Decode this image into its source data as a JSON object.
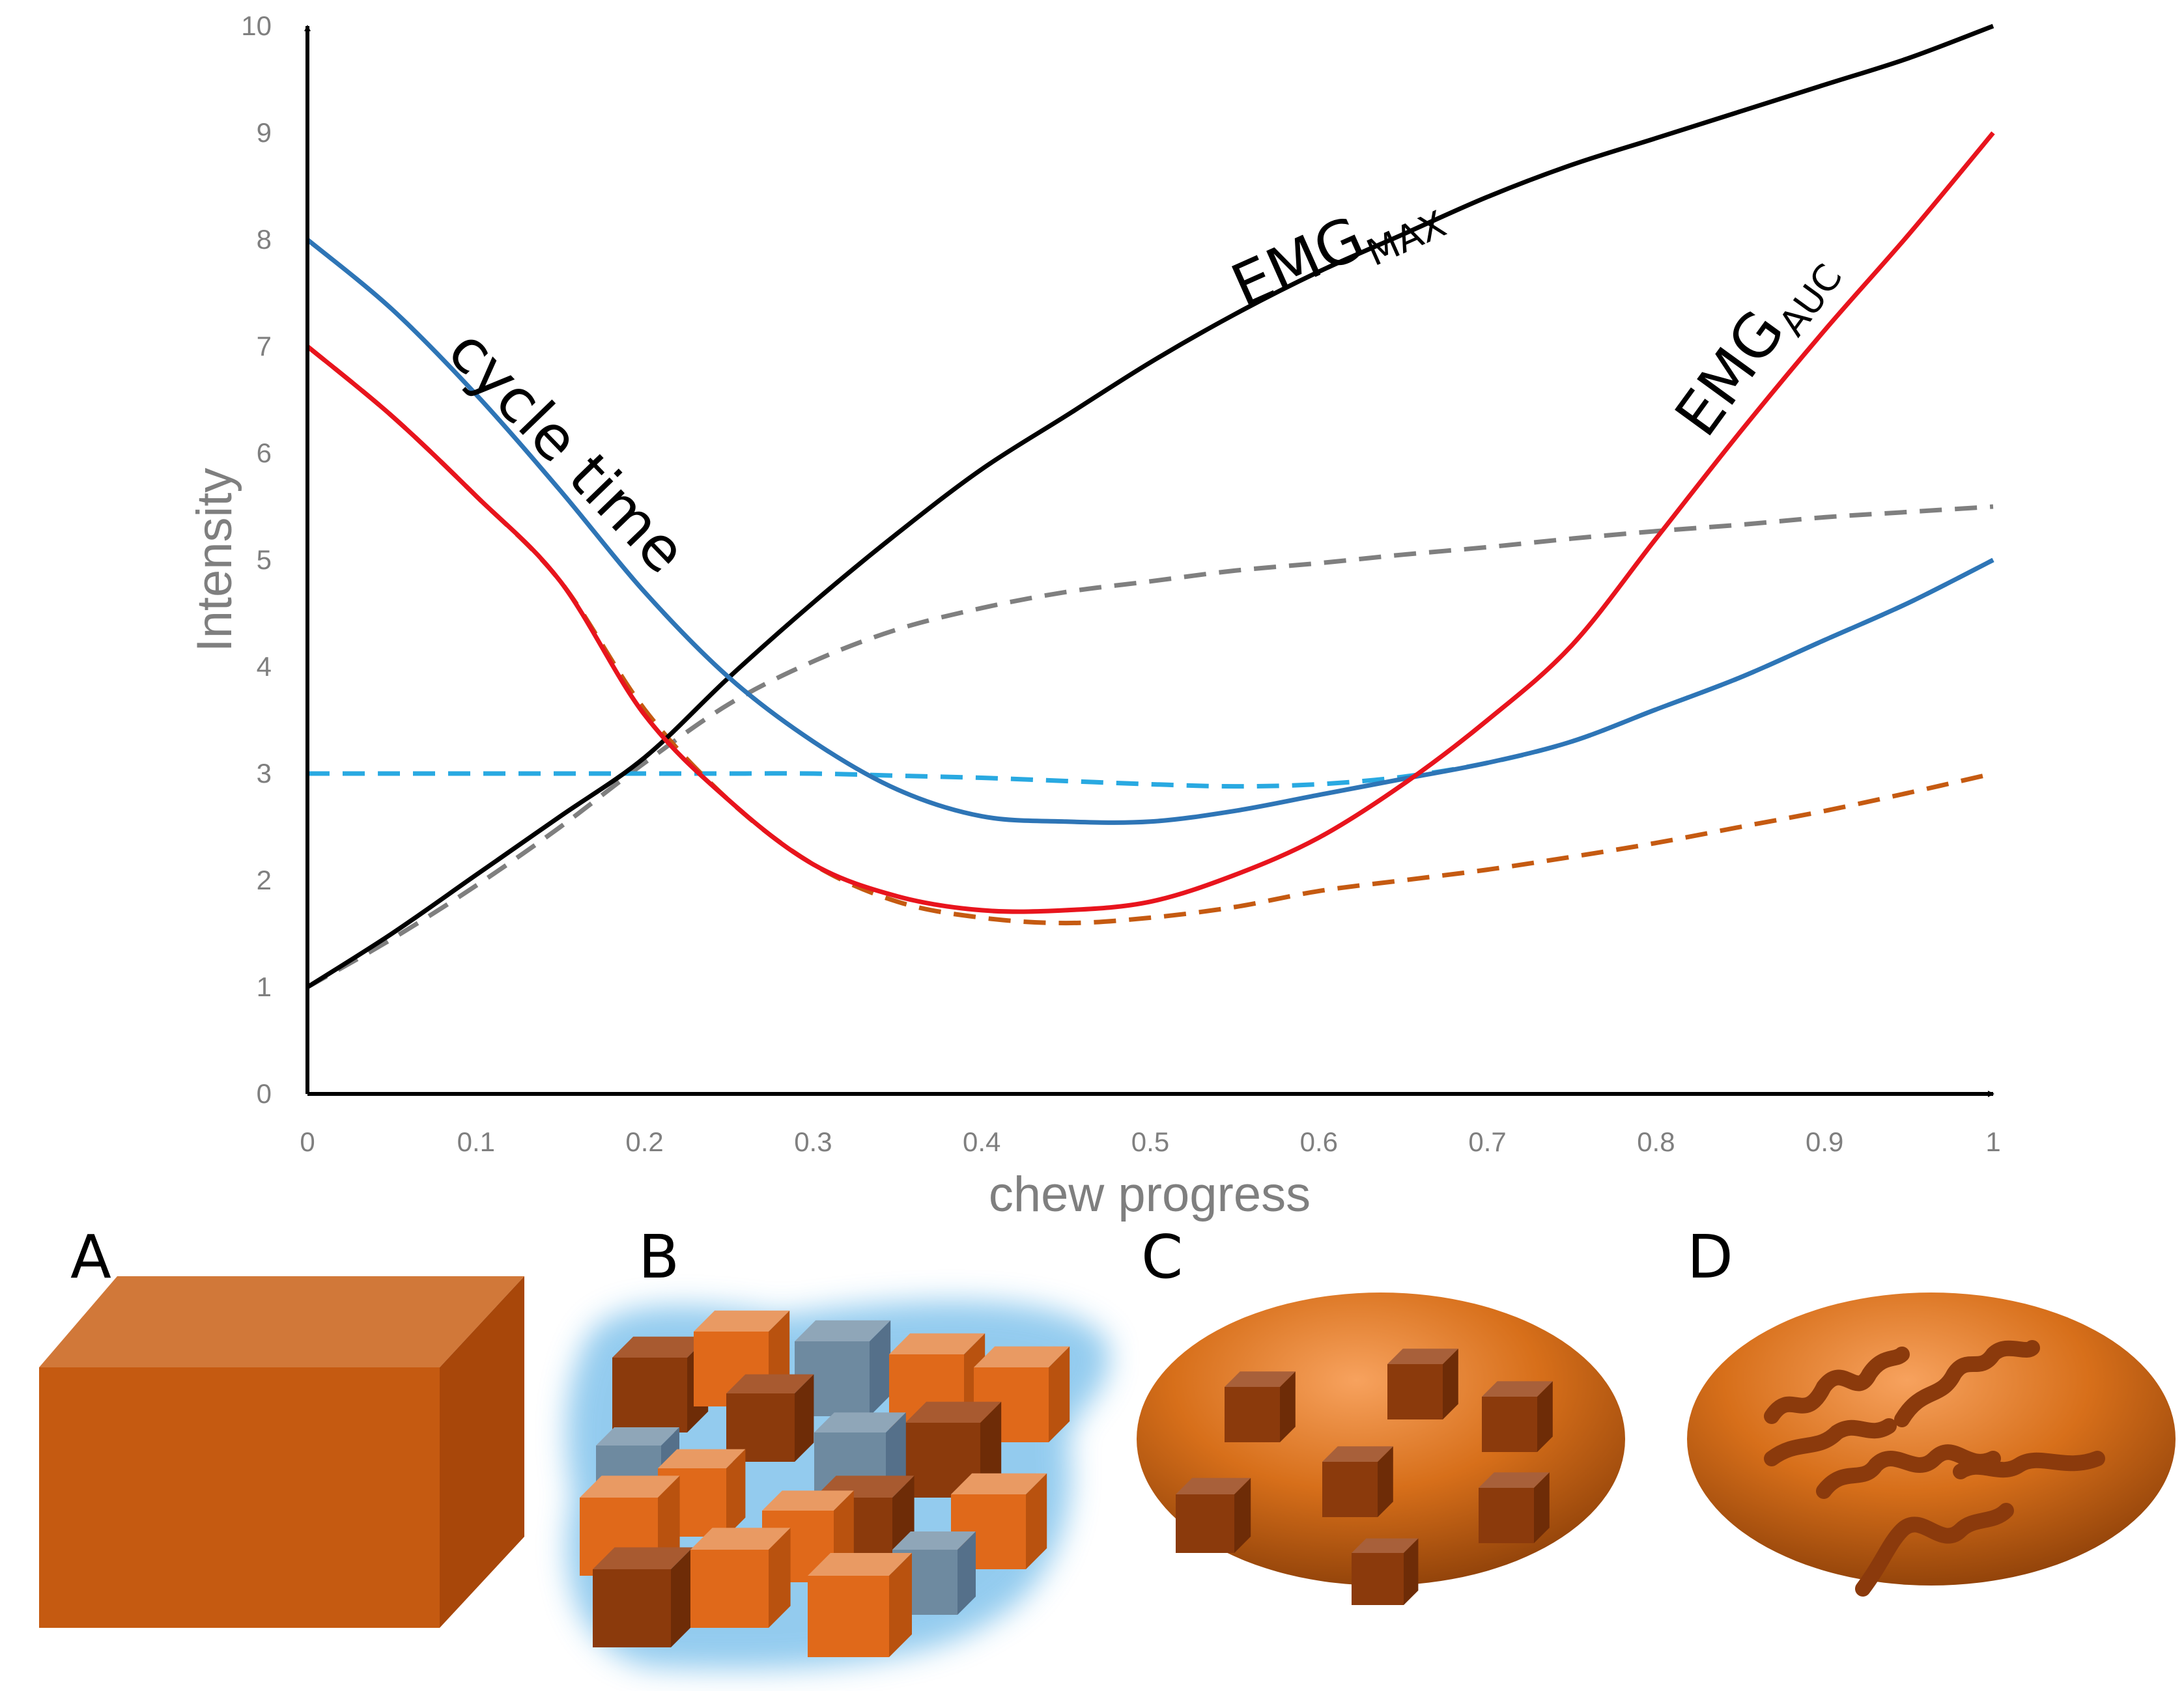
{
  "chart_data": {
    "type": "line",
    "title": "",
    "xlabel": "chew progress",
    "ylabel": "Intensity",
    "xlim": [
      0,
      1
    ],
    "ylim": [
      0,
      10
    ],
    "xticks": [
      "0",
      "0.1",
      "0.2",
      "0.3",
      "0.4",
      "0.5",
      "0.6",
      "0.7",
      "0.8",
      "0.9",
      "1"
    ],
    "yticks": [
      "0",
      "1",
      "2",
      "3",
      "4",
      "5",
      "6",
      "7",
      "8",
      "9",
      "10"
    ],
    "grid": false,
    "legend": "none",
    "x": [
      0,
      0.05,
      0.1,
      0.15,
      0.2,
      0.25,
      0.3,
      0.35,
      0.4,
      0.45,
      0.5,
      0.55,
      0.6,
      0.65,
      0.7,
      0.75,
      0.8,
      0.85,
      0.9,
      0.95,
      1
    ],
    "series": [
      {
        "label_main": "EMG",
        "label_sub": "MAX",
        "color": "#000000",
        "dash": false,
        "values": [
          1.0,
          1.5,
          2.05,
          2.6,
          3.15,
          3.9,
          4.6,
          5.25,
          5.85,
          6.35,
          6.85,
          7.3,
          7.7,
          8.05,
          8.4,
          8.7,
          8.95,
          9.2,
          9.45,
          9.7,
          10.0
        ]
      },
      {
        "label_main": "EMG",
        "label_sub": "AUC",
        "color": "#e8141d",
        "dash": false,
        "values": [
          7.0,
          6.35,
          5.6,
          4.8,
          3.55,
          2.75,
          2.15,
          1.85,
          1.72,
          1.72,
          1.8,
          2.05,
          2.4,
          2.9,
          3.5,
          4.2,
          5.2,
          6.2,
          7.15,
          8.05,
          9.0
        ]
      },
      {
        "label_main": "cycle time",
        "label_sub": "",
        "color": "#2e75b6",
        "dash": false,
        "values": [
          8.0,
          7.35,
          6.55,
          5.65,
          4.7,
          3.9,
          3.3,
          2.85,
          2.6,
          2.55,
          2.55,
          2.65,
          2.8,
          2.95,
          3.1,
          3.3,
          3.6,
          3.9,
          4.25,
          4.6,
          5.0
        ]
      },
      {
        "label_main": "",
        "label_sub": "",
        "color": "#7f7f7f",
        "dash": true,
        "values": [
          1.0,
          1.45,
          1.95,
          2.5,
          3.1,
          3.65,
          4.05,
          4.35,
          4.55,
          4.7,
          4.8,
          4.9,
          4.97,
          5.05,
          5.12,
          5.2,
          5.27,
          5.33,
          5.4,
          5.45,
          5.5
        ]
      },
      {
        "label_main": "",
        "label_sub": "",
        "color": "#29a9e1",
        "dash": true,
        "values": [
          3.0,
          3.0,
          3.0,
          3.0,
          3.0,
          3.0,
          3.0,
          2.98,
          2.96,
          2.93,
          2.9,
          2.88,
          2.9,
          2.97,
          3.1,
          3.3,
          3.6,
          3.9,
          4.25,
          4.6,
          5.0
        ]
      },
      {
        "label_main": "",
        "label_sub": "",
        "color": "#c55a11",
        "dash": true,
        "values": [
          7.0,
          6.35,
          5.6,
          4.8,
          3.6,
          2.75,
          2.15,
          1.8,
          1.65,
          1.6,
          1.65,
          1.75,
          1.9,
          2.0,
          2.1,
          2.22,
          2.35,
          2.5,
          2.65,
          2.82,
          3.0
        ]
      }
    ]
  },
  "panels": [
    "A",
    "B",
    "C",
    "D"
  ]
}
